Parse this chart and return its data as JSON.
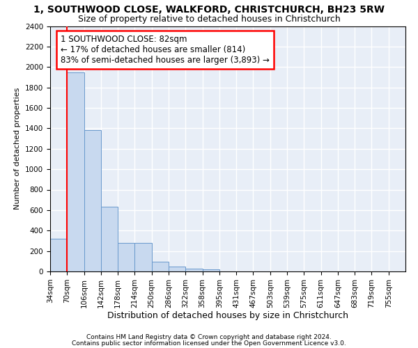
{
  "title_line1": "1, SOUTHWOOD CLOSE, WALKFORD, CHRISTCHURCH, BH23 5RW",
  "title_line2": "Size of property relative to detached houses in Christchurch",
  "xlabel": "Distribution of detached houses by size in Christchurch",
  "ylabel": "Number of detached properties",
  "footnote1": "Contains HM Land Registry data © Crown copyright and database right 2024.",
  "footnote2": "Contains public sector information licensed under the Open Government Licence v3.0.",
  "bar_color": "#c8d9ef",
  "bar_edge_color": "#6898cc",
  "red_line_x": 1,
  "annotation_line1": "1 SOUTHWOOD CLOSE: 82sqm",
  "annotation_line2": "← 17% of detached houses are smaller (814)",
  "annotation_line3": "83% of semi-detached houses are larger (3,893) →",
  "annotation_box_color": "white",
  "annotation_box_edge_color": "red",
  "categories": [
    "34sqm",
    "70sqm",
    "106sqm",
    "142sqm",
    "178sqm",
    "214sqm",
    "250sqm",
    "286sqm",
    "322sqm",
    "358sqm",
    "395sqm",
    "431sqm",
    "467sqm",
    "503sqm",
    "539sqm",
    "575sqm",
    "611sqm",
    "647sqm",
    "683sqm",
    "719sqm",
    "755sqm"
  ],
  "values": [
    320,
    1950,
    1380,
    630,
    280,
    280,
    95,
    45,
    30,
    20,
    0,
    0,
    0,
    0,
    0,
    0,
    0,
    0,
    0,
    0,
    0
  ],
  "ylim": [
    0,
    2400
  ],
  "yticks": [
    0,
    200,
    400,
    600,
    800,
    1000,
    1200,
    1400,
    1600,
    1800,
    2000,
    2200,
    2400
  ],
  "bg_color": "#e8eef7",
  "grid_color": "white",
  "title_fontsize": 10,
  "subtitle_fontsize": 9,
  "ylabel_fontsize": 8,
  "xlabel_fontsize": 9,
  "tick_fontsize": 7.5,
  "annot_fontsize": 8.5
}
